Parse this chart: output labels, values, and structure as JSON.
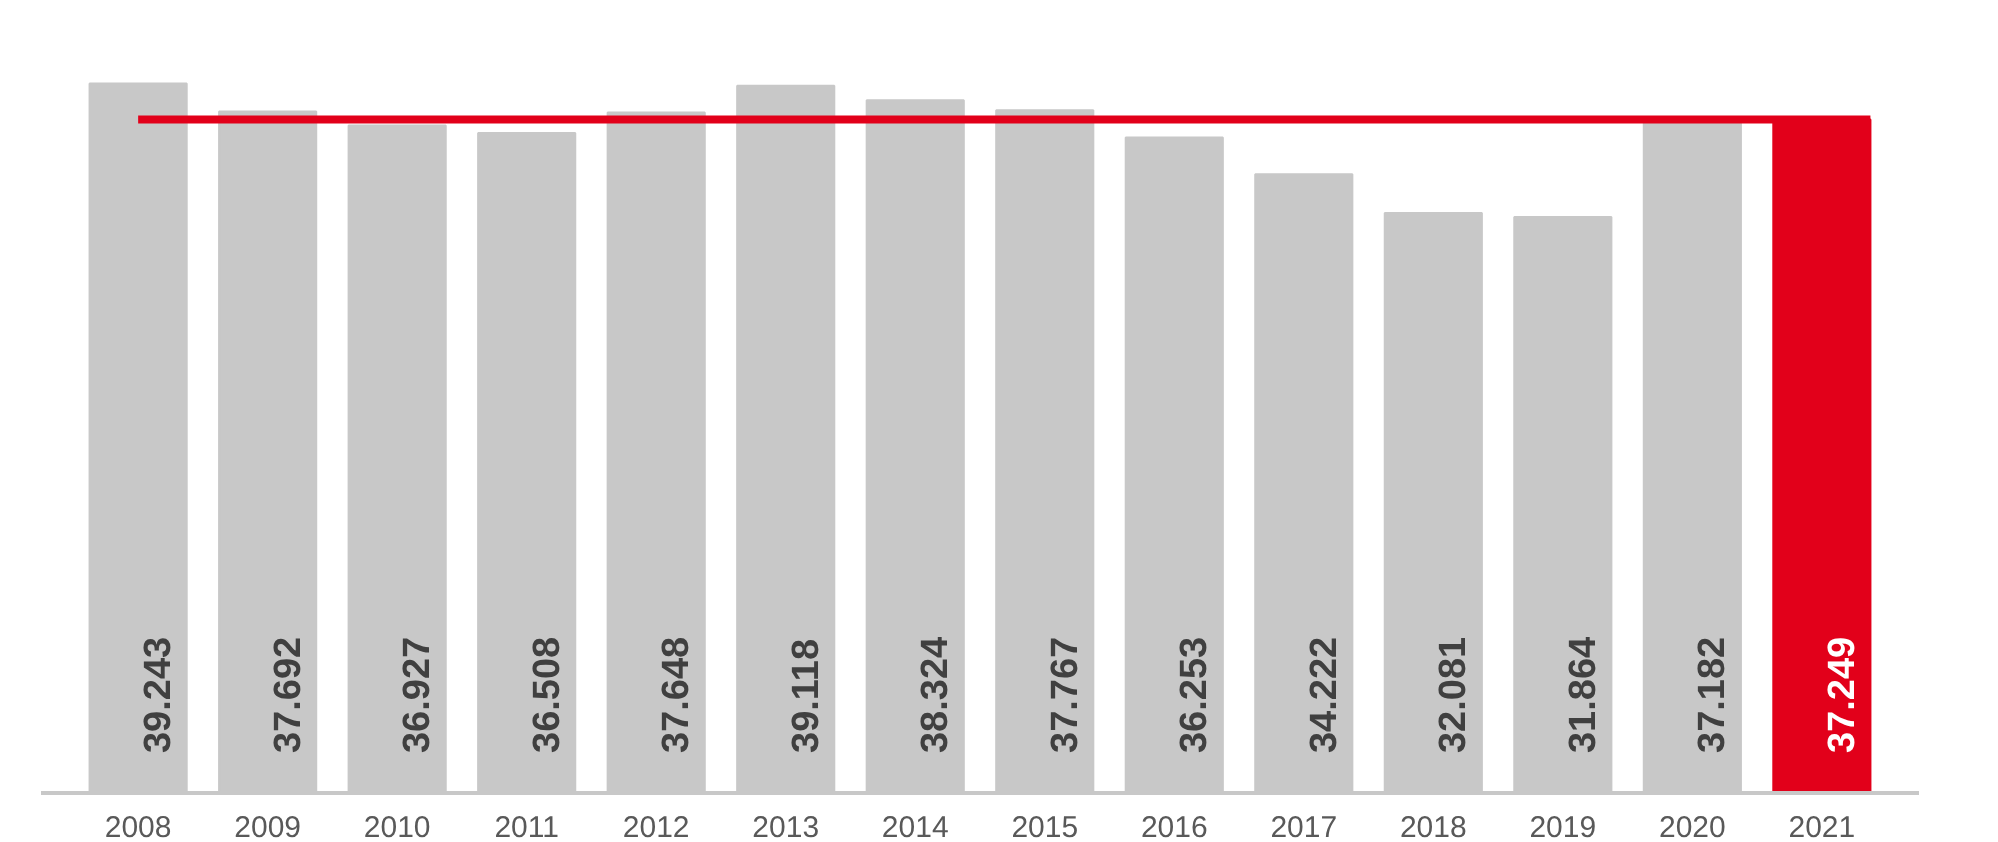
{
  "chart_data": {
    "type": "bar",
    "categories": [
      "2008",
      "2009",
      "2010",
      "2011",
      "2012",
      "2013",
      "2014",
      "2015",
      "2016",
      "2017",
      "2018",
      "2019",
      "2020",
      "2021"
    ],
    "values": [
      39.243,
      37.692,
      36.927,
      36.508,
      37.648,
      39.118,
      38.324,
      37.767,
      36.253,
      34.222,
      32.081,
      31.864,
      37.182,
      37.249
    ],
    "colors": [
      "#c8c8c8",
      "#c8c8c8",
      "#c8c8c8",
      "#c8c8c8",
      "#c8c8c8",
      "#c8c8c8",
      "#c8c8c8",
      "#c8c8c8",
      "#c8c8c8",
      "#c8c8c8",
      "#c8c8c8",
      "#c8c8c8",
      "#c8c8c8",
      "#e2001a"
    ],
    "data_labels": true,
    "ref_lines": [
      {
        "axis": "y",
        "value": 37.249,
        "color": "#e2001a"
      }
    ]
  }
}
